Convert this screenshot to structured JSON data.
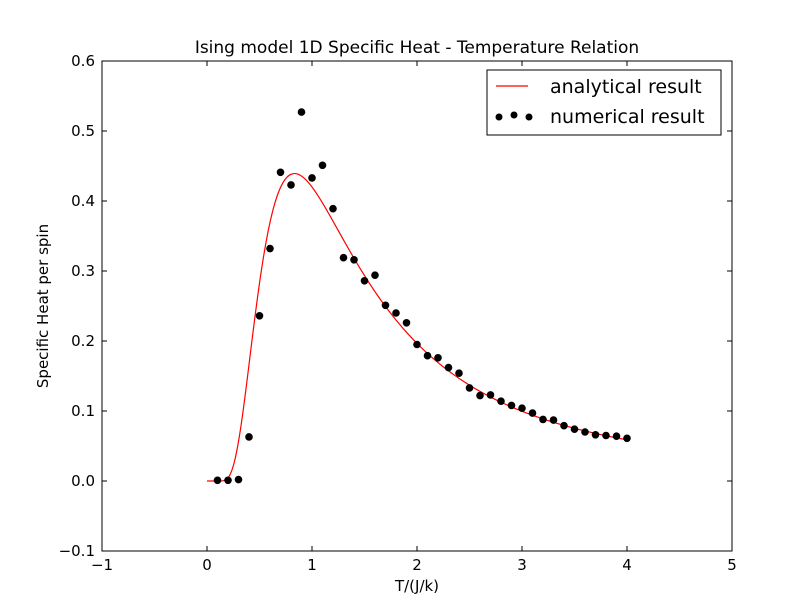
{
  "chart_data": {
    "type": "line+scatter",
    "title": "Ising model 1D Specific Heat - Temperature Relation",
    "xlabel": "T/(J/k)",
    "ylabel": "Specific Heat per spin",
    "xlim": [
      -1,
      5
    ],
    "ylim": [
      -0.1,
      0.6
    ],
    "xticks": [
      -1,
      0,
      1,
      2,
      3,
      4,
      5
    ],
    "xtick_labels": [
      "−1",
      "0",
      "1",
      "2",
      "3",
      "4",
      "5"
    ],
    "yticks": [
      -0.1,
      0.0,
      0.1,
      0.2,
      0.3,
      0.4,
      0.5,
      0.6
    ],
    "ytick_labels": [
      "−0.1",
      "0.0",
      "0.1",
      "0.2",
      "0.3",
      "0.4",
      "0.5",
      "0.6"
    ],
    "grid": false,
    "legend_position": "top-right",
    "series": [
      {
        "name": "analytical result",
        "kind": "line",
        "color": "#ff0000",
        "formula": "C = (1/T^2) / cosh^2(1/T)",
        "x_range": [
          0.0,
          4.0
        ]
      },
      {
        "name": "numerical result",
        "kind": "scatter",
        "color": "#000000",
        "x": [
          0.1,
          0.2,
          0.3,
          0.4,
          0.5,
          0.6,
          0.7,
          0.8,
          0.9,
          1.0,
          1.1,
          1.2,
          1.3,
          1.4,
          1.5,
          1.6,
          1.7,
          1.8,
          1.9,
          2.0,
          2.1,
          2.2,
          2.3,
          2.4,
          2.5,
          2.6,
          2.7,
          2.8,
          2.9,
          3.0,
          3.1,
          3.2,
          3.3,
          3.4,
          3.5,
          3.6,
          3.7,
          3.8,
          3.9,
          4.0
        ],
        "y": [
          0.001,
          0.001,
          0.002,
          0.063,
          0.236,
          0.332,
          0.441,
          0.423,
          0.527,
          0.433,
          0.451,
          0.389,
          0.319,
          0.316,
          0.286,
          0.294,
          0.251,
          0.24,
          0.226,
          0.195,
          0.179,
          0.176,
          0.162,
          0.154,
          0.133,
          0.122,
          0.123,
          0.114,
          0.108,
          0.104,
          0.097,
          0.088,
          0.087,
          0.079,
          0.074,
          0.07,
          0.066,
          0.065,
          0.064,
          0.061
        ]
      }
    ]
  }
}
